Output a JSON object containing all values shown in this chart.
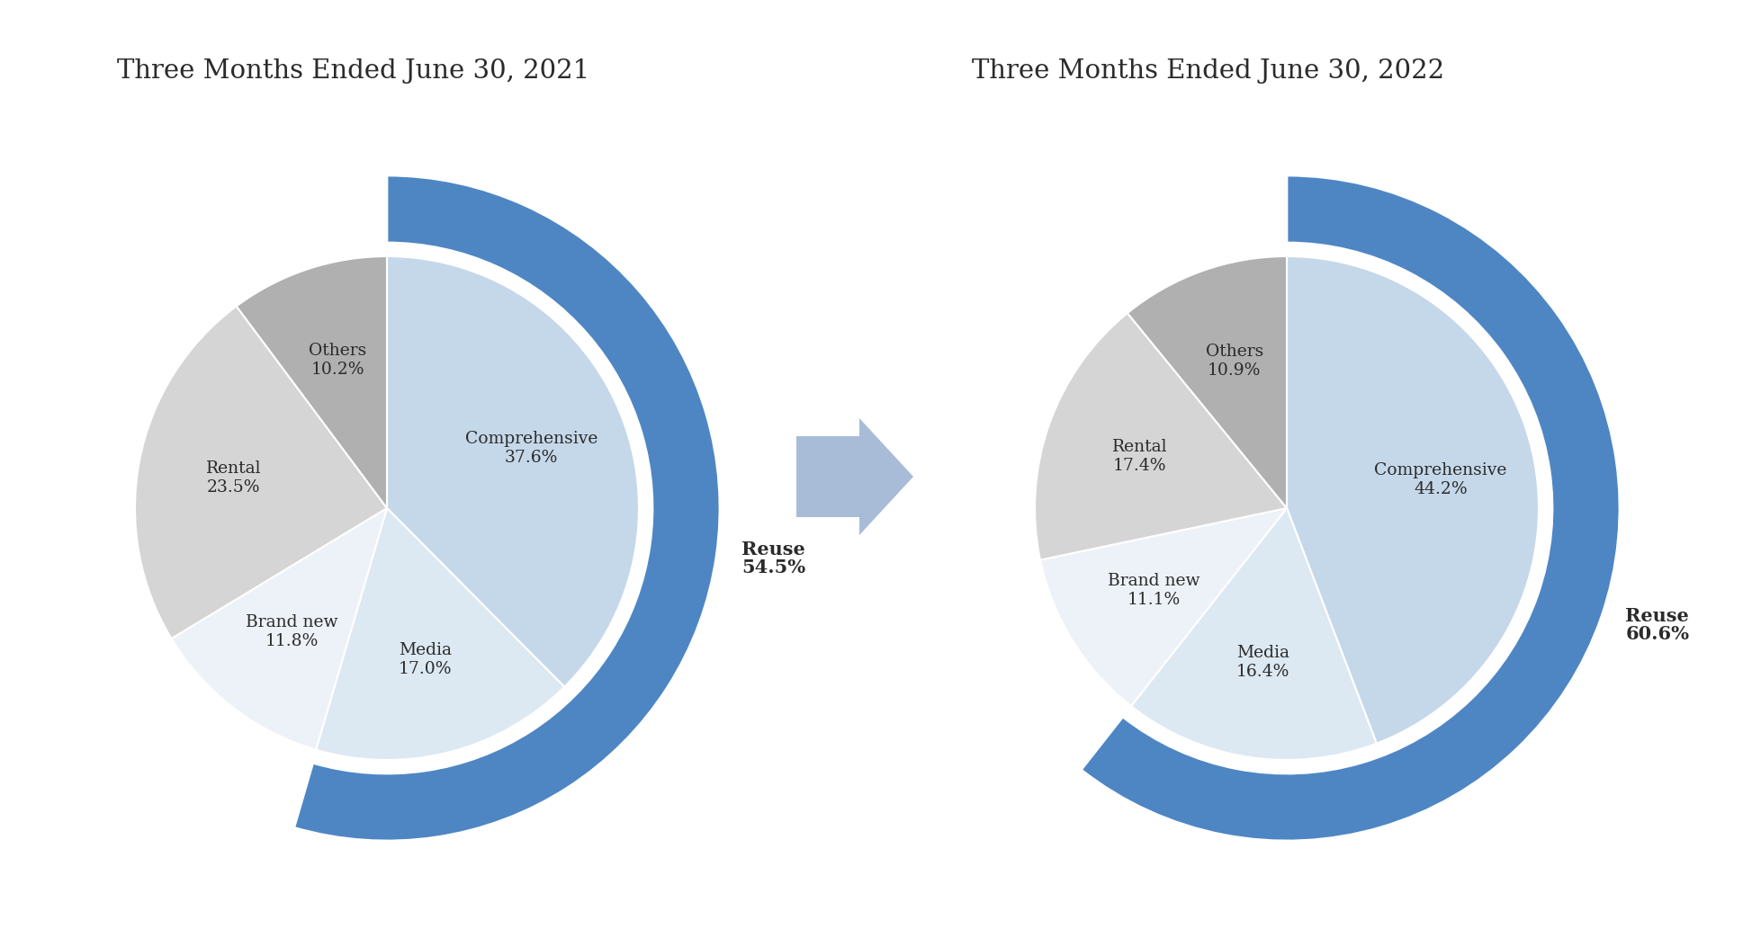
{
  "title_2021": "Three Months Ended June 30, 2021",
  "title_2022": "Three Months Ended June 30, 2022",
  "chart_2021": {
    "inner_labels": [
      "Comprehensive",
      "Media",
      "Brand new",
      "Rental",
      "Others"
    ],
    "inner_values": [
      37.6,
      17.0,
      11.8,
      23.5,
      10.2
    ],
    "inner_colors": [
      "#c5d8ea",
      "#dce8f2",
      "#edf2f8",
      "#d5d5d5",
      "#b0b0b0"
    ],
    "outer_value": 54.5,
    "outer_label_line1": "Reuse",
    "outer_label_line2": "54.5%",
    "outer_color": "#4e86c4"
  },
  "chart_2022": {
    "inner_labels": [
      "Comprehensive",
      "Media",
      "Brand new",
      "Rental",
      "Others"
    ],
    "inner_values": [
      44.2,
      16.4,
      11.1,
      17.4,
      10.9
    ],
    "inner_colors": [
      "#c5d8ea",
      "#dce8f2",
      "#edf2f8",
      "#d5d5d5",
      "#b0b0b0"
    ],
    "outer_value": 60.6,
    "outer_label_line1": "Reuse",
    "outer_label_line2": "60.6%",
    "outer_color": "#4e86c4"
  },
  "arrow_color": "#a8bcd8",
  "bg_color": "#ffffff",
  "text_color": "#2b2b2b",
  "title_fontsize": 21,
  "label_fontsize": 13.5,
  "reuse_fontsize": 15
}
